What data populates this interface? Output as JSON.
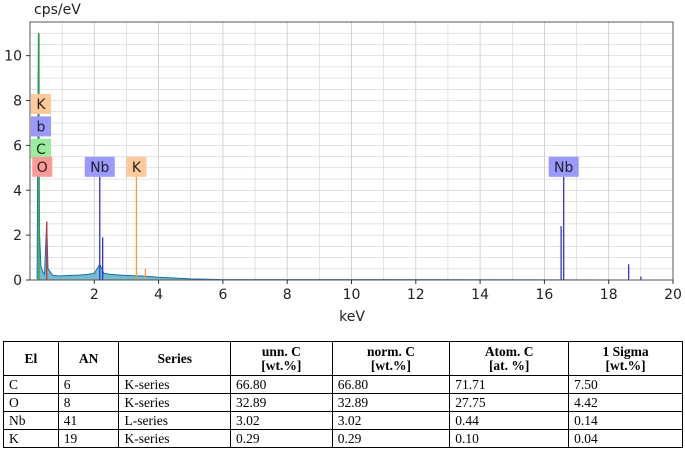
{
  "chart_data": {
    "type": "line",
    "ylabel": "cps/eV",
    "xlabel": "keV",
    "xlim": [
      0,
      20
    ],
    "ylim": [
      0,
      11.5
    ],
    "xticks": [
      "2",
      "4",
      "6",
      "8",
      "10",
      "12",
      "14",
      "16",
      "18",
      "20"
    ],
    "yticks": [
      "0",
      "2",
      "4",
      "6",
      "8",
      "10"
    ],
    "grid": true,
    "spectrum": [
      [
        0.22,
        0.05
      ],
      [
        0.26,
        11.0
      ],
      [
        0.3,
        2.0
      ],
      [
        0.34,
        0.6
      ],
      [
        0.4,
        0.35
      ],
      [
        0.45,
        0.25
      ],
      [
        0.52,
        2.6
      ],
      [
        0.56,
        0.5
      ],
      [
        0.7,
        0.22
      ],
      [
        0.9,
        0.18
      ],
      [
        1.2,
        0.2
      ],
      [
        1.5,
        0.22
      ],
      [
        1.8,
        0.25
      ],
      [
        2.0,
        0.3
      ],
      [
        2.17,
        0.7
      ],
      [
        2.3,
        0.3
      ],
      [
        2.5,
        0.25
      ],
      [
        3.0,
        0.2
      ],
      [
        3.5,
        0.18
      ],
      [
        4.0,
        0.12
      ],
      [
        5.0,
        0.05
      ],
      [
        6.0,
        0.02
      ],
      [
        10.0,
        0.02
      ],
      [
        20.0,
        0.0
      ]
    ],
    "peak_lines": [
      {
        "x": 0.28,
        "y": 11.0,
        "color": "#33aa33"
      },
      {
        "x": 0.52,
        "y": 2.6,
        "color": "#cc3333"
      },
      {
        "x": 2.17,
        "y": 4.6,
        "color": "#3333cc"
      },
      {
        "x": 2.26,
        "y": 1.9,
        "color": "#3333cc"
      },
      {
        "x": 3.31,
        "y": 4.6,
        "color": "#ff9933"
      },
      {
        "x": 3.59,
        "y": 0.5,
        "color": "#ff9933"
      },
      {
        "x": 16.52,
        "y": 2.4,
        "color": "#3333cc"
      },
      {
        "x": 16.6,
        "y": 4.6,
        "color": "#3333cc"
      },
      {
        "x": 18.62,
        "y": 0.7,
        "color": "#3333cc"
      },
      {
        "x": 19.0,
        "y": 0.15,
        "color": "#3333cc"
      }
    ],
    "element_labels": [
      {
        "text": "K",
        "x": 0.18,
        "y": 7.4,
        "bg": "#ffc999"
      },
      {
        "text": "b",
        "x": 0.18,
        "y": 6.4,
        "bg": "#9999ff"
      },
      {
        "text": "C",
        "x": 0.18,
        "y": 5.4,
        "bg": "#99ee99"
      },
      {
        "text": "O",
        "x": 0.38,
        "y": 4.6,
        "bg": "#ff9999"
      },
      {
        "text": "Nb",
        "x": 2.17,
        "y": 4.6,
        "bg": "#9999ff"
      },
      {
        "text": "K",
        "x": 3.31,
        "y": 4.6,
        "bg": "#ffc999"
      },
      {
        "text": "Nb",
        "x": 16.6,
        "y": 4.6,
        "bg": "#9999ff"
      }
    ],
    "colors": {
      "spectrum": "#1a6fa8",
      "fill": "#5bb0c8",
      "grid": "#c8c8c8"
    }
  },
  "table": {
    "headers": [
      [
        "El"
      ],
      [
        "AN"
      ],
      [
        "Series"
      ],
      [
        "unn. C",
        "[wt.%]"
      ],
      [
        "norm. C",
        "[wt.%]"
      ],
      [
        "Atom. C",
        "[at. %]"
      ],
      [
        "1 Sigma",
        "[wt.%]"
      ]
    ],
    "rows": [
      [
        "C",
        "6",
        "K-series",
        "66.80",
        "66.80",
        "71.71",
        "7.50"
      ],
      [
        "O",
        "8",
        "K-series",
        "32.89",
        "32.89",
        "27.75",
        "4.42"
      ],
      [
        "Nb",
        "41",
        "L-series",
        "3.02",
        "3.02",
        "0.44",
        "0.14"
      ],
      [
        "K",
        "19",
        "K-series",
        "0.29",
        "0.29",
        "0.10",
        "0.04"
      ]
    ]
  }
}
